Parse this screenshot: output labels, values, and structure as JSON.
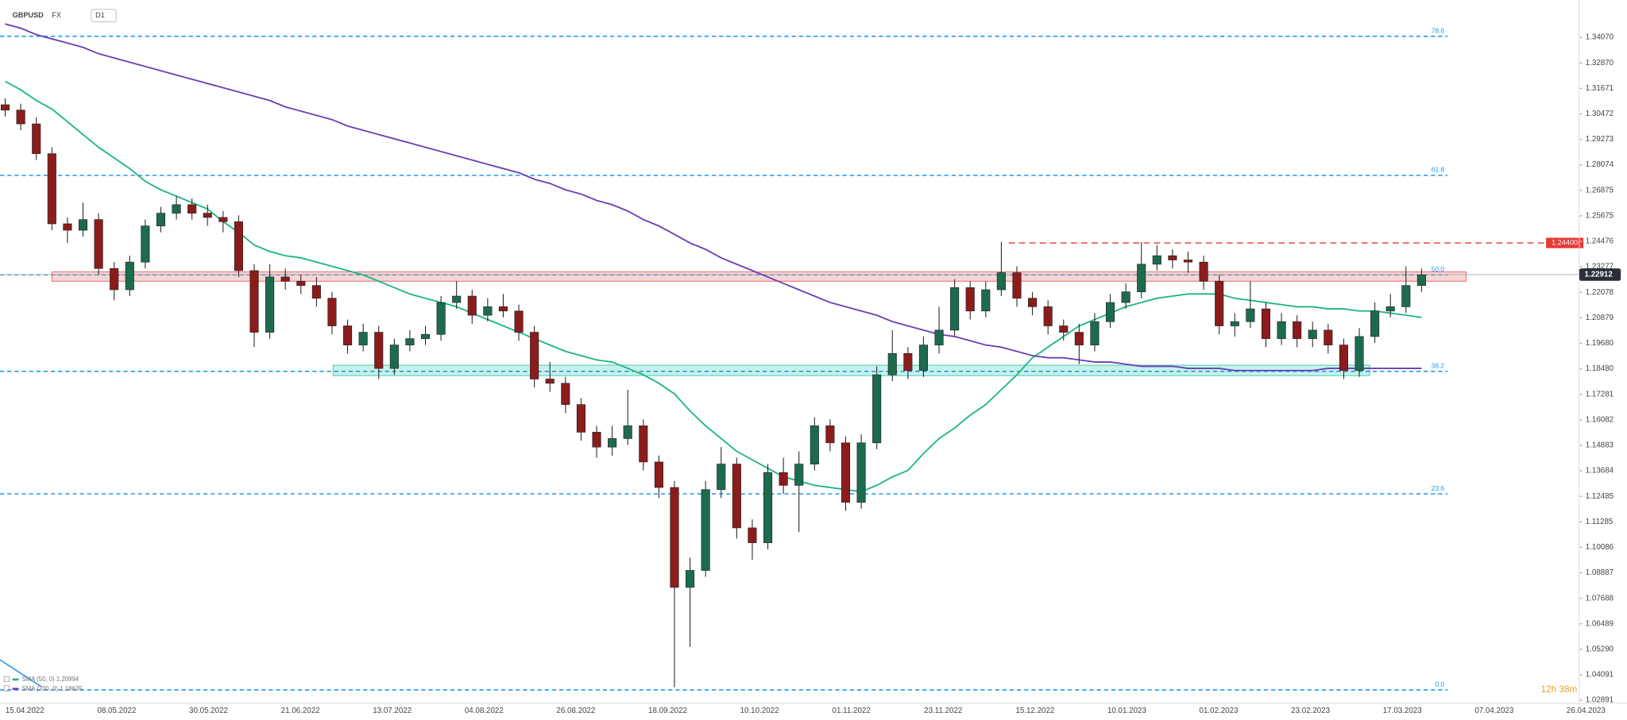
{
  "chart_data": {
    "type": "candlestick",
    "title": "GBPUSD",
    "market": "FX",
    "timeframe": "D1",
    "timer": "12h 38m",
    "ylim": [
      1.02744,
      1.35827
    ],
    "yticks": [
      {
        "value": 1.3407,
        "label": "1.34070"
      },
      {
        "value": 1.3287,
        "label": "1.32870"
      },
      1.31671,
      1.30472,
      1.29273,
      1.28074,
      1.26875,
      1.25675,
      1.24476,
      1.23277,
      1.22078,
      1.20879,
      {
        "value": 1.1968,
        "label": "1.19680"
      },
      {
        "value": 1.1848,
        "label": "1.18480"
      },
      1.17281,
      1.16082,
      1.14883,
      1.13684,
      1.12485,
      1.11285,
      1.10086,
      1.08887,
      1.07688,
      1.06489,
      {
        "value": 1.0529,
        "label": "1.05290"
      },
      1.04091,
      1.02891
    ],
    "xticks": [
      "15.04.2022",
      "08.05.2022",
      "30.05.2022",
      "21.06.2022",
      "13.07.2022",
      "04.08.2022",
      "26.08.2022",
      "18.09.2022",
      "10.10.2022",
      "01.11.2022",
      "23.11.2022",
      "15.12.2022",
      "10.01.2023",
      "01.02.2023",
      "23.02.2023",
      "17.03.2023",
      "07.04.2023",
      "26.04.2023"
    ],
    "up_color": "#1d6b4f",
    "down_color": "#8c1c1c",
    "open": [
      1.309,
      1.3065,
      1.3,
      1.286,
      1.253,
      1.25,
      1.255,
      1.232,
      1.222,
      1.235,
      1.252,
      1.258,
      1.262,
      1.258,
      1.256,
      1.254,
      1.231,
      1.202,
      1.228,
      1.226,
      1.224,
      1.218,
      1.205,
      1.196,
      1.202,
      1.185,
      1.196,
      1.199,
      1.201,
      1.216,
      1.219,
      1.21,
      1.214,
      1.212,
      1.202,
      1.18,
      1.178,
      1.168,
      1.155,
      1.148,
      1.152,
      1.158,
      1.141,
      1.129,
      1.082,
      1.09,
      1.128,
      1.14,
      1.11,
      1.103,
      1.136,
      1.13,
      1.14,
      1.158,
      1.15,
      1.122,
      1.15,
      1.182,
      1.192,
      1.184,
      1.196,
      1.203,
      1.223,
      1.212,
      1.222,
      1.23,
      1.218,
      1.214,
      1.205,
      1.202,
      1.196,
      1.207,
      1.216,
      1.221,
      1.234,
      1.238,
      1.236,
      1.235,
      1.226,
      1.205,
      1.207,
      1.213,
      1.199,
      1.207,
      1.199,
      1.203,
      1.196,
      1.184,
      1.2,
      1.212,
      1.214,
      1.224
    ],
    "high": [
      1.312,
      1.3095,
      1.303,
      1.289,
      1.256,
      1.263,
      1.258,
      1.235,
      1.238,
      1.255,
      1.261,
      1.266,
      1.265,
      1.262,
      1.259,
      1.257,
      1.234,
      1.234,
      1.232,
      1.229,
      1.228,
      1.221,
      1.208,
      1.206,
      1.205,
      1.199,
      1.203,
      1.205,
      1.219,
      1.226,
      1.222,
      1.218,
      1.22,
      1.215,
      1.205,
      1.188,
      1.181,
      1.171,
      1.158,
      1.158,
      1.175,
      1.161,
      1.144,
      1.132,
      1.096,
      1.132,
      1.148,
      1.143,
      1.114,
      1.14,
      1.143,
      1.146,
      1.162,
      1.161,
      1.153,
      1.154,
      1.186,
      1.203,
      1.195,
      1.2,
      1.214,
      1.227,
      1.226,
      1.226,
      1.2445,
      1.233,
      1.221,
      1.217,
      1.208,
      1.206,
      1.211,
      1.22,
      1.225,
      1.2445,
      1.243,
      1.241,
      1.24,
      1.238,
      1.229,
      1.211,
      1.226,
      1.216,
      1.211,
      1.21,
      1.207,
      1.206,
      1.199,
      1.204,
      1.216,
      1.22,
      1.233,
      1.232
    ],
    "low": [
      1.3035,
      1.297,
      1.283,
      1.25,
      1.244,
      1.247,
      1.229,
      1.217,
      1.219,
      1.232,
      1.249,
      1.255,
      1.255,
      1.252,
      1.249,
      1.228,
      1.195,
      1.199,
      1.222,
      1.22,
      1.214,
      1.201,
      1.192,
      1.193,
      1.18,
      1.182,
      1.193,
      1.196,
      1.198,
      1.213,
      1.206,
      1.207,
      1.209,
      1.198,
      1.176,
      1.174,
      1.164,
      1.151,
      1.143,
      1.144,
      1.149,
      1.137,
      1.124,
      1.035,
      1.054,
      1.087,
      1.124,
      1.105,
      1.095,
      1.1,
      1.126,
      1.108,
      1.137,
      1.146,
      1.118,
      1.119,
      1.147,
      1.179,
      1.18,
      1.181,
      1.192,
      1.2,
      1.208,
      1.209,
      1.219,
      1.214,
      1.21,
      1.201,
      1.198,
      1.187,
      1.193,
      1.204,
      1.213,
      1.218,
      1.231,
      1.232,
      1.23,
      1.222,
      1.201,
      1.2,
      1.204,
      1.195,
      1.196,
      1.195,
      1.195,
      1.192,
      1.18,
      1.181,
      1.197,
      1.209,
      1.211,
      1.221
    ],
    "close": [
      1.3065,
      1.3,
      1.286,
      1.253,
      1.25,
      1.255,
      1.232,
      1.222,
      1.235,
      1.252,
      1.258,
      1.262,
      1.258,
      1.256,
      1.254,
      1.231,
      1.202,
      1.228,
      1.226,
      1.224,
      1.218,
      1.205,
      1.196,
      1.202,
      1.185,
      1.196,
      1.199,
      1.201,
      1.216,
      1.219,
      1.21,
      1.214,
      1.212,
      1.202,
      1.18,
      1.178,
      1.168,
      1.155,
      1.148,
      1.152,
      1.158,
      1.141,
      1.129,
      1.082,
      1.09,
      1.128,
      1.14,
      1.11,
      1.103,
      1.136,
      1.13,
      1.14,
      1.158,
      1.15,
      1.122,
      1.15,
      1.182,
      1.192,
      1.184,
      1.196,
      1.203,
      1.223,
      1.212,
      1.222,
      1.23,
      1.218,
      1.214,
      1.205,
      1.202,
      1.196,
      1.207,
      1.216,
      1.221,
      1.234,
      1.238,
      1.236,
      1.235,
      1.226,
      1.205,
      1.207,
      1.213,
      1.199,
      1.207,
      1.199,
      1.203,
      1.196,
      1.184,
      1.2,
      1.212,
      1.214,
      1.224,
      1.229
    ],
    "series": [
      {
        "name": "SMA (50, 0)",
        "last": 1.20994,
        "color": "#1db584",
        "values": [
          1.32,
          1.316,
          1.311,
          1.307,
          1.301,
          1.295,
          1.289,
          1.284,
          1.279,
          1.273,
          1.269,
          1.266,
          1.263,
          1.26,
          1.254,
          1.249,
          1.243,
          1.24,
          1.238,
          1.237,
          1.235,
          1.233,
          1.231,
          1.229,
          1.226,
          1.223,
          1.22,
          1.218,
          1.216,
          1.214,
          1.211,
          1.208,
          1.205,
          1.202,
          1.199,
          1.196,
          1.193,
          1.191,
          1.189,
          1.188,
          1.185,
          1.182,
          1.178,
          1.173,
          1.165,
          1.158,
          1.152,
          1.146,
          1.142,
          1.138,
          1.134,
          1.132,
          1.13,
          1.129,
          1.128,
          1.127,
          1.13,
          1.134,
          1.137,
          1.145,
          1.152,
          1.157,
          1.163,
          1.168,
          1.175,
          1.182,
          1.19,
          1.195,
          1.2,
          1.205,
          1.208,
          1.211,
          1.214,
          1.216,
          1.218,
          1.219,
          1.22,
          1.22,
          1.22,
          1.218,
          1.217,
          1.216,
          1.215,
          1.214,
          1.214,
          1.213,
          1.213,
          1.212,
          1.212,
          1.211,
          1.21,
          1.209
        ]
      },
      {
        "name": "SMA (200, 0)",
        "last": 1.18635,
        "color": "#6a3fb5",
        "values": [
          1.347,
          1.345,
          1.342,
          1.34,
          1.338,
          1.336,
          1.333,
          1.331,
          1.329,
          1.327,
          1.325,
          1.323,
          1.321,
          1.319,
          1.317,
          1.315,
          1.313,
          1.311,
          1.308,
          1.306,
          1.304,
          1.302,
          1.299,
          1.297,
          1.295,
          1.293,
          1.291,
          1.289,
          1.287,
          1.285,
          1.283,
          1.281,
          1.279,
          1.277,
          1.274,
          1.272,
          1.269,
          1.267,
          1.264,
          1.262,
          1.259,
          1.255,
          1.252,
          1.248,
          1.244,
          1.241,
          1.237,
          1.234,
          1.231,
          1.228,
          1.225,
          1.222,
          1.219,
          1.216,
          1.214,
          1.212,
          1.21,
          1.207,
          1.205,
          1.203,
          1.201,
          1.2,
          1.198,
          1.196,
          1.195,
          1.193,
          1.191,
          1.19,
          1.19,
          1.189,
          1.188,
          1.188,
          1.187,
          1.186,
          1.186,
          1.186,
          1.185,
          1.185,
          1.185,
          1.184,
          1.184,
          1.184,
          1.184,
          1.184,
          1.184,
          1.185,
          1.185,
          1.185,
          1.185,
          1.185,
          1.185,
          1.185
        ]
      }
    ],
    "levels": [
      {
        "name": "78.6",
        "value": 1.3412
      },
      {
        "name": "61.8",
        "value": 1.2758
      },
      {
        "name": "50.0",
        "value": 1.229
      },
      {
        "name": "38.2",
        "value": 1.1836
      },
      {
        "name": "23.6",
        "value": 1.126
      },
      {
        "name": "0.0",
        "value": 1.0338
      }
    ],
    "level_color": "#2196f3",
    "resistance": {
      "value": 1.244,
      "label": "1.24400",
      "color": "#e53935"
    },
    "last_price": 1.22912,
    "zones": [
      {
        "range": [
          1.226,
          1.2304
        ],
        "color": "#e57373"
      },
      {
        "range": [
          1.1816,
          1.1865
        ],
        "color": "#4dd0b8"
      }
    ]
  }
}
